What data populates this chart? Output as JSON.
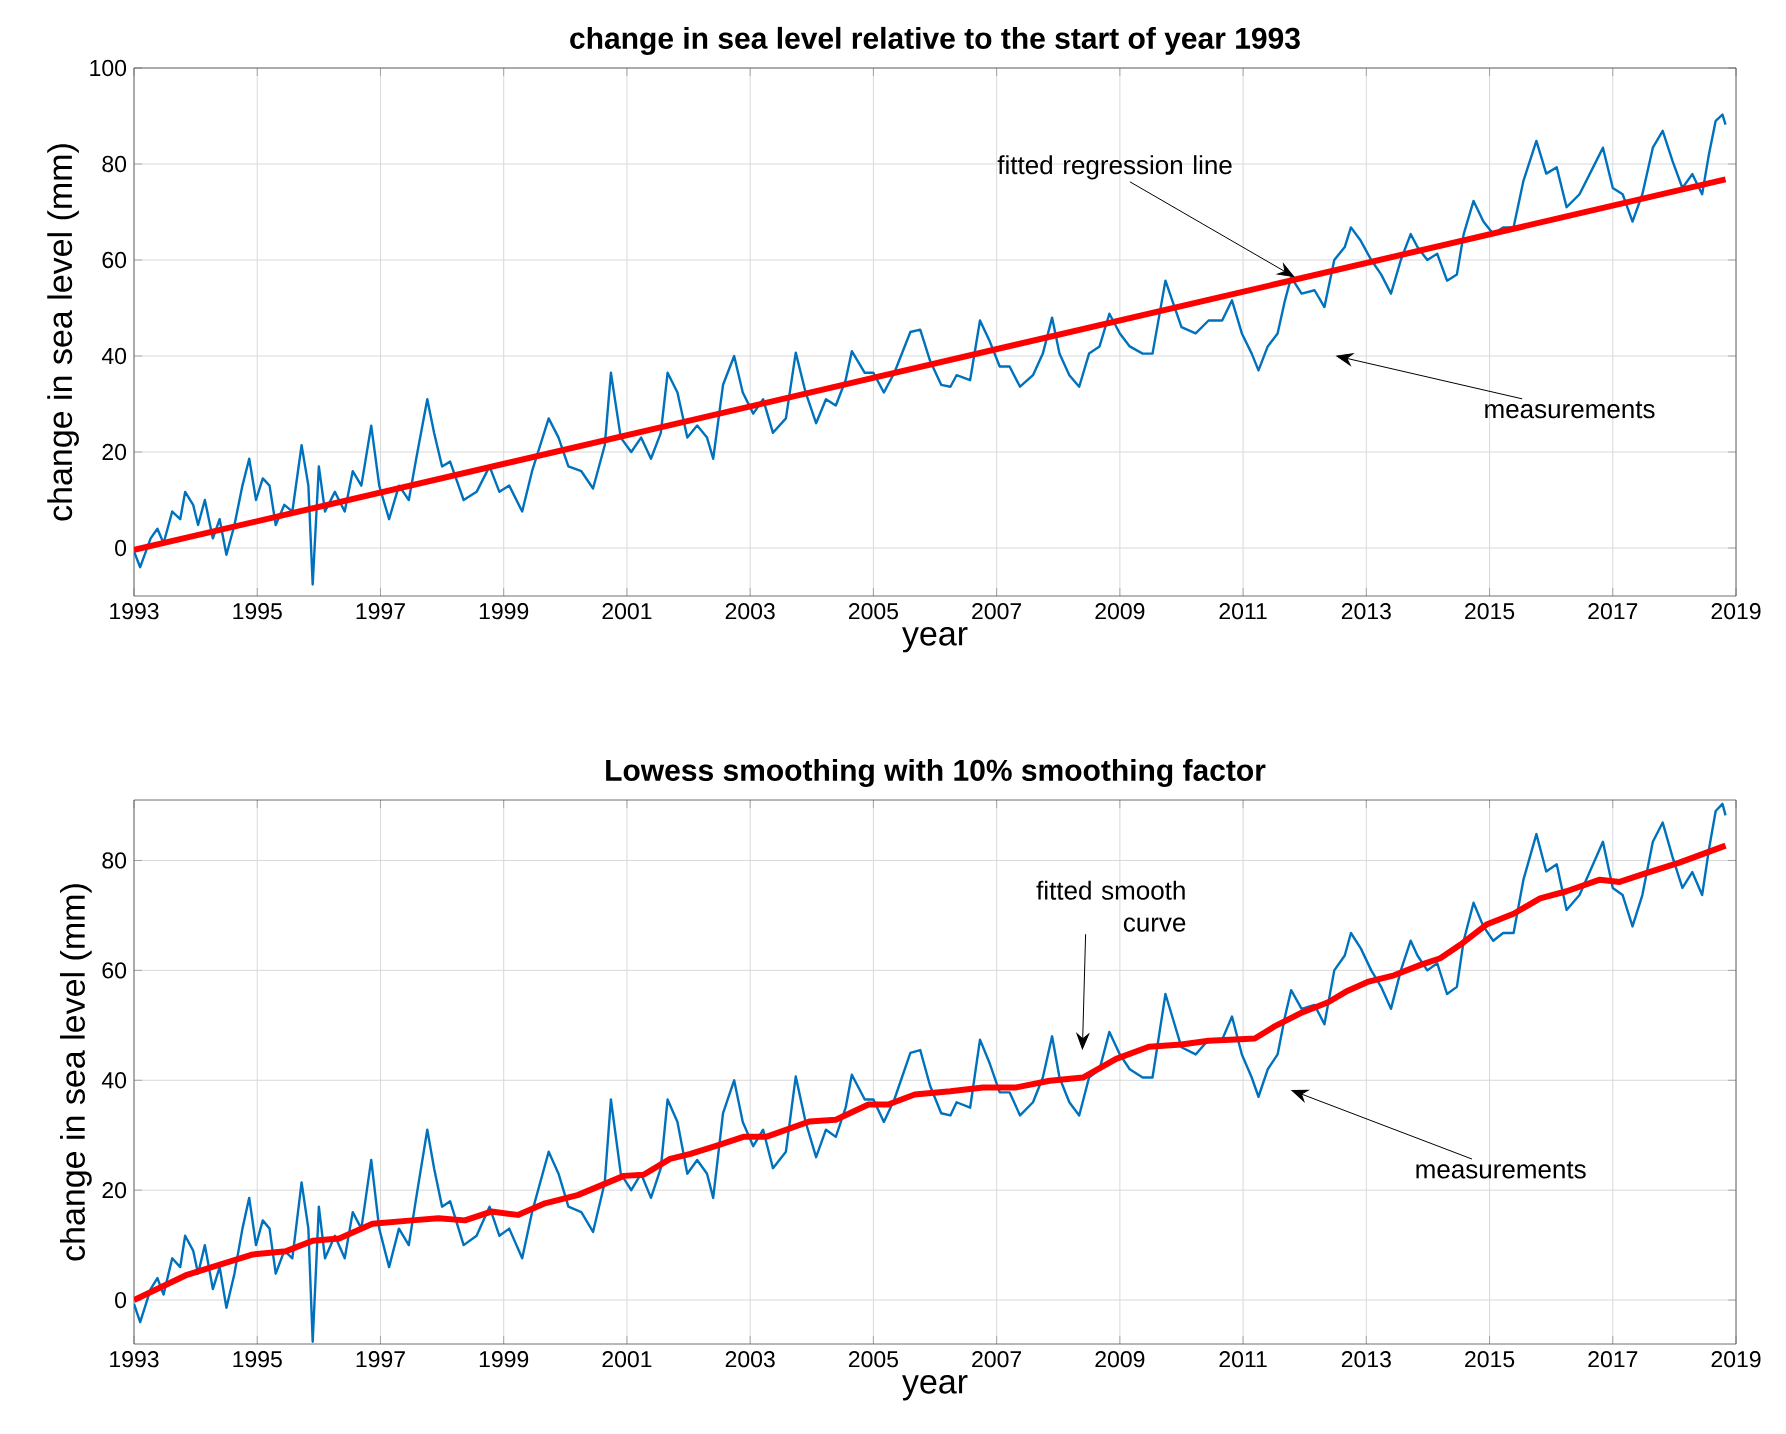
{
  "chart_data": [
    {
      "type": "line",
      "title": "change in sea level relative to the start of year 1993",
      "xlabel": "year",
      "ylabel": "change in sea level (mm)",
      "xlim": [
        1993,
        2019
      ],
      "xticks": [
        1993,
        1995,
        1997,
        1999,
        2001,
        2003,
        2005,
        2007,
        2009,
        2011,
        2013,
        2015,
        2017,
        2019
      ],
      "ylim": [
        -10,
        100
      ],
      "yticks": [
        0,
        20,
        40,
        60,
        80,
        100
      ],
      "grid": true,
      "series": [
        {
          "color": "#0072bd",
          "x": [
            1993.0,
            1993.1,
            1993.27,
            1993.38,
            1993.48,
            1993.62,
            1993.75,
            1993.83,
            1993.96,
            1994.04,
            1994.15,
            1994.28,
            1994.39,
            1994.5,
            1994.63,
            1994.76,
            1994.87,
            1994.98,
            1995.09,
            1995.2,
            1995.3,
            1995.44,
            1995.57,
            1995.72,
            1995.83,
            1995.9,
            1996.0,
            1996.1,
            1996.26,
            1996.42,
            1996.55,
            1996.69,
            1996.85,
            1996.98,
            1997.14,
            1997.3,
            1997.46,
            1997.58,
            1997.76,
            1997.87,
            1998.0,
            1998.13,
            1998.35,
            1998.56,
            1998.77,
            1998.93,
            1999.09,
            1999.3,
            1999.46,
            1999.73,
            1999.89,
            2000.05,
            2000.26,
            2000.45,
            2000.64,
            2000.74,
            2000.9,
            2001.07,
            2001.23,
            2001.39,
            2001.55,
            2001.66,
            2001.82,
            2001.98,
            2002.14,
            2002.3,
            2002.4,
            2002.56,
            2002.74,
            2002.88,
            2003.05,
            2003.21,
            2003.37,
            2003.58,
            2003.74,
            2003.9,
            2004.07,
            2004.23,
            2004.39,
            2004.55,
            2004.65,
            2004.86,
            2005.0,
            2005.17,
            2005.34,
            2005.6,
            2005.76,
            2005.92,
            2006.1,
            2006.25,
            2006.35,
            2006.57,
            2006.73,
            2006.89,
            2007.05,
            2007.21,
            2007.38,
            2007.59,
            2007.75,
            2007.9,
            2008.02,
            2008.18,
            2008.34,
            2008.5,
            2008.67,
            2008.83,
            2009.0,
            2009.16,
            2009.37,
            2009.53,
            2009.74,
            2009.85,
            2010.0,
            2010.23,
            2010.44,
            2010.66,
            2010.82,
            2010.98,
            2011.14,
            2011.25,
            2011.4,
            2011.56,
            2011.68,
            2011.78,
            2011.95,
            2012.16,
            2012.32,
            2012.48,
            2012.65,
            2012.75,
            2012.91,
            2013.08,
            2013.24,
            2013.4,
            2013.56,
            2013.72,
            2013.83,
            2013.99,
            2014.15,
            2014.31,
            2014.47,
            2014.58,
            2014.74,
            2014.9,
            2015.06,
            2015.22,
            2015.39,
            2015.55,
            2015.76,
            2015.92,
            2016.09,
            2016.25,
            2016.46,
            2016.68,
            2016.84,
            2017.0,
            2017.16,
            2017.32,
            2017.48,
            2017.65,
            2017.81,
            2017.97,
            2018.13,
            2018.29,
            2018.45,
            2018.56,
            2018.67,
            2018.78,
            2018.83
          ],
          "values": [
            -0.7,
            -4,
            2,
            4,
            1,
            7.6,
            6,
            11.7,
            9,
            4.8,
            10,
            2,
            6,
            -1.4,
            4.8,
            13,
            18.6,
            10,
            14.5,
            13,
            4.8,
            9,
            7.6,
            21.4,
            13,
            -7.6,
            17,
            7.6,
            11.7,
            7.6,
            16,
            13,
            25.5,
            13,
            6,
            13,
            10,
            18.6,
            31,
            24,
            17,
            18,
            10,
            11.7,
            17,
            11.7,
            13,
            7.6,
            16,
            27,
            23,
            17,
            16,
            12.4,
            21.4,
            36.5,
            23,
            20,
            23,
            18.6,
            24,
            36.5,
            32.4,
            23,
            25.5,
            23,
            18.6,
            34,
            40,
            32.4,
            28,
            31,
            24,
            27,
            40.7,
            32.4,
            26,
            31,
            29.7,
            35,
            41,
            36.5,
            36.5,
            32.4,
            36.5,
            45,
            45.5,
            39,
            34,
            33.6,
            36,
            35,
            47.4,
            43,
            37.8,
            37.8,
            33.6,
            36,
            40.5,
            48,
            40.5,
            36,
            33.6,
            40.5,
            42,
            48.8,
            44.7,
            42,
            40.5,
            40.5,
            55.7,
            51.6,
            46,
            44.7,
            47.4,
            47.4,
            51.6,
            44.7,
            40.5,
            37,
            42,
            44.7,
            51.6,
            56.4,
            53,
            53.7,
            50.2,
            60,
            62.7,
            66.8,
            64,
            60,
            57,
            53,
            60,
            65.4,
            62.7,
            60,
            61.3,
            55.7,
            57,
            65.4,
            72.3,
            68,
            65.4,
            66.8,
            66.8,
            76.5,
            84.8,
            78,
            79.3,
            71,
            73.7,
            79.3,
            83.4,
            75,
            73.7,
            68,
            73.7,
            83.4,
            86.9,
            80.6,
            75,
            77.9,
            73.7,
            82,
            89,
            90.3,
            88.2
          ]
        },
        {
          "color": "#ff0000",
          "x": [
            1993.0,
            2018.83
          ],
          "values": [
            -0.4,
            76.8
          ]
        }
      ],
      "annotations": [
        {
          "text": "fitted regression line",
          "x": 2011.84,
          "y": 56.4
        },
        "measurements"
      ]
    },
    {
      "type": "line",
      "title": "Lowess smoothing with 10% smoothing factor",
      "xlabel": "year",
      "ylabel": "change in sea level (mm)",
      "xlim": [
        1993,
        2019
      ],
      "xticks": [
        1993,
        1995,
        1997,
        1999,
        2001,
        2003,
        2005,
        2007,
        2009,
        2011,
        2013,
        2015,
        2017,
        2019
      ],
      "ylim": [
        -8,
        91
      ],
      "yticks": [
        0,
        20,
        40,
        60,
        80
      ],
      "grid": true,
      "series": [
        {
          "color": "#0072bd",
          "x": [
            1993.0,
            1993.1,
            1993.27,
            1993.38,
            1993.48,
            1993.62,
            1993.75,
            1993.83,
            1993.96,
            1994.04,
            1994.15,
            1994.28,
            1994.39,
            1994.5,
            1994.63,
            1994.76,
            1994.87,
            1994.98,
            1995.09,
            1995.2,
            1995.3,
            1995.44,
            1995.57,
            1995.72,
            1995.83,
            1995.9,
            1996.0,
            1996.1,
            1996.26,
            1996.42,
            1996.55,
            1996.69,
            1996.85,
            1996.98,
            1997.14,
            1997.3,
            1997.46,
            1997.58,
            1997.76,
            1997.87,
            1998.0,
            1998.13,
            1998.35,
            1998.56,
            1998.77,
            1998.93,
            1999.09,
            1999.3,
            1999.46,
            1999.73,
            1999.89,
            2000.05,
            2000.26,
            2000.45,
            2000.64,
            2000.74,
            2000.9,
            2001.07,
            2001.23,
            2001.39,
            2001.55,
            2001.66,
            2001.82,
            2001.98,
            2002.14,
            2002.3,
            2002.4,
            2002.56,
            2002.74,
            2002.88,
            2003.05,
            2003.21,
            2003.37,
            2003.58,
            2003.74,
            2003.9,
            2004.07,
            2004.23,
            2004.39,
            2004.55,
            2004.65,
            2004.86,
            2005.0,
            2005.17,
            2005.34,
            2005.6,
            2005.76,
            2005.92,
            2006.1,
            2006.25,
            2006.35,
            2006.57,
            2006.73,
            2006.89,
            2007.05,
            2007.21,
            2007.38,
            2007.59,
            2007.75,
            2007.9,
            2008.02,
            2008.18,
            2008.34,
            2008.5,
            2008.67,
            2008.83,
            2009.0,
            2009.16,
            2009.37,
            2009.53,
            2009.74,
            2009.85,
            2010.0,
            2010.23,
            2010.44,
            2010.66,
            2010.82,
            2010.98,
            2011.14,
            2011.25,
            2011.4,
            2011.56,
            2011.68,
            2011.78,
            2011.95,
            2012.16,
            2012.32,
            2012.48,
            2012.65,
            2012.75,
            2012.91,
            2013.08,
            2013.24,
            2013.4,
            2013.56,
            2013.72,
            2013.83,
            2013.99,
            2014.15,
            2014.31,
            2014.47,
            2014.58,
            2014.74,
            2014.9,
            2015.06,
            2015.22,
            2015.39,
            2015.55,
            2015.76,
            2015.92,
            2016.09,
            2016.25,
            2016.46,
            2016.68,
            2016.84,
            2017.0,
            2017.16,
            2017.32,
            2017.48,
            2017.65,
            2017.81,
            2017.97,
            2018.13,
            2018.29,
            2018.45,
            2018.56,
            2018.67,
            2018.78,
            2018.83
          ],
          "values": [
            -0.7,
            -4,
            2,
            4,
            1,
            7.6,
            6,
            11.7,
            9,
            4.8,
            10,
            2,
            6,
            -1.4,
            4.8,
            13,
            18.6,
            10,
            14.5,
            13,
            4.8,
            9,
            7.6,
            21.4,
            13,
            -7.6,
            17,
            7.6,
            11.7,
            7.6,
            16,
            13,
            25.5,
            13,
            6,
            13,
            10,
            18.6,
            31,
            24,
            17,
            18,
            10,
            11.7,
            17,
            11.7,
            13,
            7.6,
            16,
            27,
            23,
            17,
            16,
            12.4,
            21.4,
            36.5,
            23,
            20,
            23,
            18.6,
            24,
            36.5,
            32.4,
            23,
            25.5,
            23,
            18.6,
            34,
            40,
            32.4,
            28,
            31,
            24,
            27,
            40.7,
            32.4,
            26,
            31,
            29.7,
            35,
            41,
            36.5,
            36.5,
            32.4,
            36.5,
            45,
            45.5,
            39,
            34,
            33.6,
            36,
            35,
            47.4,
            43,
            37.8,
            37.8,
            33.6,
            36,
            40.5,
            48,
            40.5,
            36,
            33.6,
            40.5,
            42,
            48.8,
            44.7,
            42,
            40.5,
            40.5,
            55.7,
            51.6,
            46,
            44.7,
            47.4,
            47.4,
            51.6,
            44.7,
            40.5,
            37,
            42,
            44.7,
            51.6,
            56.4,
            53,
            53.7,
            50.2,
            60,
            62.7,
            66.8,
            64,
            60,
            57,
            53,
            60,
            65.4,
            62.7,
            60,
            61.3,
            55.7,
            57,
            65.4,
            72.3,
            68,
            65.4,
            66.8,
            66.8,
            76.5,
            84.8,
            78,
            79.3,
            71,
            73.7,
            79.3,
            83.4,
            75,
            73.7,
            68,
            73.7,
            83.4,
            86.9,
            80.6,
            75,
            77.9,
            73.7,
            82,
            89,
            90.3,
            88.2
          ]
        },
        {
          "color": "#ff0000",
          "x": [
            1993.0,
            1993.86,
            1994.93,
            1995.47,
            1995.9,
            1996.33,
            1996.87,
            1997.51,
            1997.94,
            1998.37,
            1998.8,
            1999.23,
            1999.67,
            2000.2,
            2000.95,
            2001.27,
            2001.7,
            2002.03,
            2002.46,
            2002.89,
            2003.26,
            2003.96,
            2004.39,
            2004.92,
            2005.24,
            2005.67,
            2006.25,
            2006.78,
            2007.32,
            2007.86,
            2008.4,
            2008.94,
            2009.47,
            2010.0,
            2010.44,
            2010.87,
            2011.19,
            2011.51,
            2011.95,
            2012.38,
            2012.7,
            2013.02,
            2013.45,
            2013.88,
            2014.2,
            2014.53,
            2014.96,
            2015.39,
            2015.82,
            2016.25,
            2016.79,
            2017.11,
            2017.54,
            2018.08,
            2018.83
          ],
          "values": [
            0,
            4.6,
            8.3,
            8.9,
            10.8,
            11.2,
            13.9,
            14.5,
            14.9,
            14.5,
            16.1,
            15.5,
            17.6,
            19.1,
            22.6,
            22.8,
            25.7,
            26.6,
            28.1,
            29.7,
            29.7,
            32.5,
            32.8,
            35.6,
            35.6,
            37.4,
            38,
            38.7,
            38.7,
            39.9,
            40.5,
            43.9,
            46.1,
            46.5,
            47.2,
            47.4,
            47.6,
            49.8,
            52.3,
            54.2,
            56.3,
            57.9,
            59.1,
            61,
            62.2,
            64.7,
            68.4,
            70.3,
            73.1,
            74.4,
            76.5,
            76.1,
            77.7,
            79.6,
            82.7
          ]
        }
      ],
      "annotations": [
        "fitted smooth curve",
        "measurements"
      ]
    }
  ]
}
